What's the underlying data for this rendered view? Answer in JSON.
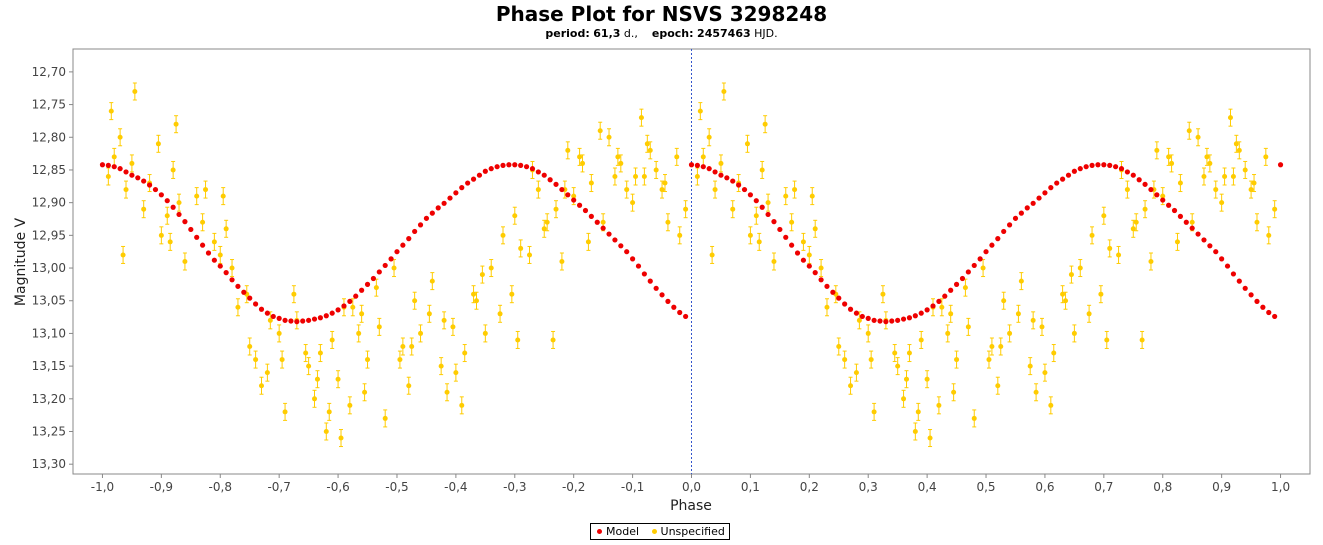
{
  "chart_data": {
    "type": "scatter",
    "title": "Phase Plot for NSVS 3298248",
    "subtitle": {
      "period_label": "period:",
      "period_value": "61,3",
      "period_unit": "d.,",
      "epoch_label": "epoch:",
      "epoch_value": "2457463",
      "epoch_unit": "HJD."
    },
    "xlabel": "Phase",
    "ylabel": "Magnitude V",
    "xlim": [
      -1.05,
      1.05
    ],
    "ylim": [
      12.665,
      13.315
    ],
    "y_inverted": true,
    "x_ticks": [
      "-1,0",
      "-0,9",
      "-0,8",
      "-0,7",
      "-0,6",
      "-0,5",
      "-0,4",
      "-0,3",
      "-0,2",
      "-0,1",
      "0,0",
      "0,1",
      "0,2",
      "0,3",
      "0,4",
      "0,5",
      "0,6",
      "0,7",
      "0,8",
      "0,9",
      "1,0"
    ],
    "y_ticks": [
      "12,70",
      "12,75",
      "12,80",
      "12,85",
      "12,90",
      "12,95",
      "13,00",
      "13,05",
      "13,10",
      "13,15",
      "13,20",
      "13,25",
      "13,30"
    ],
    "vertical_marker_x": 0.0,
    "grid": false,
    "legend_position": "bottom-center",
    "legend": [
      "Model",
      "Unspecified"
    ],
    "colors": {
      "model": "#ee0000",
      "observations": "#ffcc00",
      "marker_line": "#3355cc"
    },
    "series": [
      {
        "name": "Model",
        "x": [
          0.0,
          0.01,
          0.02,
          0.03,
          0.04,
          0.05,
          0.06,
          0.07,
          0.08,
          0.09,
          0.1,
          0.11,
          0.12,
          0.13,
          0.14,
          0.15,
          0.16,
          0.17,
          0.18,
          0.19,
          0.2,
          0.21,
          0.22,
          0.23,
          0.24,
          0.25,
          0.26,
          0.27,
          0.28,
          0.29,
          0.3,
          0.31,
          0.32,
          0.33,
          0.34,
          0.35,
          0.36,
          0.37,
          0.38,
          0.39,
          0.4,
          0.41,
          0.42,
          0.43,
          0.44,
          0.45,
          0.46,
          0.47,
          0.48,
          0.49,
          0.5,
          0.51,
          0.52,
          0.53,
          0.54,
          0.55,
          0.56,
          0.57,
          0.58,
          0.59,
          0.6,
          0.61,
          0.62,
          0.63,
          0.64,
          0.65,
          0.66,
          0.67,
          0.68,
          0.69,
          0.7,
          0.71,
          0.72,
          0.73,
          0.74,
          0.75,
          0.76,
          0.77,
          0.78,
          0.79,
          0.8,
          0.81,
          0.82,
          0.83,
          0.84,
          0.85,
          0.86,
          0.87,
          0.88,
          0.89,
          0.9,
          0.91,
          0.92,
          0.93,
          0.94,
          0.95,
          0.96,
          0.97,
          0.98,
          0.99
        ],
        "y": [
          12.842,
          12.843,
          12.845,
          12.848,
          12.853,
          12.858,
          12.862,
          12.867,
          12.873,
          12.88,
          12.888,
          12.897,
          12.907,
          12.918,
          12.929,
          12.941,
          12.953,
          12.965,
          12.977,
          12.988,
          12.997,
          13.007,
          13.018,
          13.028,
          13.037,
          13.046,
          13.055,
          13.063,
          13.069,
          13.074,
          13.077,
          13.08,
          13.081,
          13.082,
          13.081,
          13.08,
          13.078,
          13.076,
          13.073,
          13.069,
          13.064,
          13.058,
          13.051,
          13.043,
          13.034,
          13.025,
          13.016,
          13.006,
          12.996,
          12.986,
          12.975,
          12.965,
          12.955,
          12.944,
          12.934,
          12.924,
          12.916,
          12.908,
          12.901,
          12.893,
          12.885,
          12.877,
          12.87,
          12.864,
          12.858,
          12.852,
          12.848,
          12.845,
          12.843,
          12.842,
          12.842,
          12.843,
          12.845,
          12.848,
          12.853,
          12.858,
          12.865,
          12.872,
          12.88,
          12.888,
          12.896,
          12.904,
          12.912,
          12.921,
          12.93,
          12.939,
          12.948,
          12.957,
          12.966,
          12.975,
          12.986,
          12.997,
          13.009,
          13.02,
          13.031,
          13.041,
          13.051,
          13.06,
          13.068,
          13.074
        ],
        "mirror_over_phase": true
      },
      {
        "name": "Unspecified",
        "x": [
          0.01,
          0.02,
          0.03,
          0.04,
          0.05,
          0.07,
          0.08,
          0.1,
          0.11,
          0.12,
          0.13,
          0.14,
          0.16,
          0.17,
          0.19,
          0.2,
          0.21,
          0.22,
          0.23,
          0.25,
          0.26,
          0.27,
          0.28,
          0.3,
          0.31,
          0.33,
          0.35,
          0.36,
          0.37,
          0.38,
          0.39,
          0.4,
          0.41,
          0.42,
          0.44,
          0.45,
          0.47,
          0.48,
          0.51,
          0.52,
          0.53,
          0.54,
          0.56,
          0.58,
          0.6,
          0.61,
          0.63,
          0.65,
          0.66,
          0.68,
          0.7,
          0.71,
          0.73,
          0.74,
          0.75,
          0.77,
          0.78,
          0.79,
          0.8,
          0.81,
          0.83,
          0.85,
          0.86,
          0.87,
          0.88,
          0.89,
          0.9,
          0.92,
          0.93,
          0.94,
          0.95,
          0.96,
          0.98,
          0.99,
          0.015,
          0.055,
          0.095,
          0.125,
          0.175,
          0.245,
          0.305,
          0.325,
          0.345,
          0.385,
          0.405,
          0.425,
          0.445,
          0.465,
          0.495,
          0.525,
          0.555,
          0.575,
          0.595,
          0.615,
          0.645,
          0.675,
          0.695,
          0.725,
          0.755,
          0.785,
          0.815,
          0.845,
          0.875,
          0.905,
          0.925,
          0.955,
          0.975,
          0.035,
          0.115,
          0.205,
          0.285,
          0.365,
          0.435,
          0.505,
          0.585,
          0.635,
          0.705,
          0.765,
          0.825,
          0.915
        ],
        "y": [
          12.86,
          12.83,
          12.8,
          12.88,
          12.84,
          12.91,
          12.87,
          12.95,
          12.92,
          12.85,
          12.9,
          12.99,
          12.89,
          12.93,
          12.96,
          12.98,
          12.94,
          13.0,
          13.06,
          13.12,
          13.14,
          13.18,
          13.16,
          13.1,
          13.22,
          13.08,
          13.15,
          13.2,
          13.13,
          13.25,
          13.11,
          13.17,
          13.06,
          13.21,
          13.07,
          13.14,
          13.09,
          13.23,
          13.12,
          13.18,
          13.05,
          13.1,
          13.02,
          13.08,
          13.16,
          13.21,
          13.04,
          13.1,
          13.0,
          12.95,
          12.92,
          12.97,
          12.85,
          12.88,
          12.94,
          12.91,
          12.99,
          12.82,
          12.89,
          12.83,
          12.87,
          12.93,
          12.8,
          12.86,
          12.84,
          12.88,
          12.9,
          12.86,
          12.82,
          12.85,
          12.88,
          12.93,
          12.95,
          12.91,
          12.76,
          12.73,
          12.81,
          12.78,
          12.88,
          13.04,
          13.14,
          13.04,
          13.13,
          13.22,
          13.26,
          13.06,
          13.19,
          13.03,
          13.0,
          13.12,
          13.07,
          13.15,
          13.09,
          13.13,
          13.01,
          13.07,
          13.04,
          12.98,
          12.93,
          12.88,
          12.84,
          12.79,
          12.83,
          12.86,
          12.81,
          12.87,
          12.83,
          12.98,
          12.96,
          12.89,
          13.08,
          13.17,
          13.1,
          13.14,
          13.19,
          13.05,
          13.11,
          13.11,
          12.96,
          12.77
        ],
        "mirror_over_phase": true
      }
    ]
  }
}
